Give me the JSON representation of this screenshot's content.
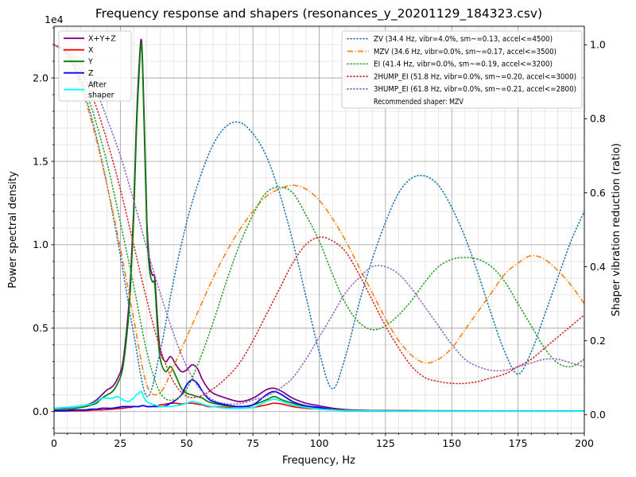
{
  "chart_data": {
    "type": "line",
    "title": "Frequency response and shapers (resonances_y_20201129_184323.csv)",
    "xlabel": "Frequency, Hz",
    "ylabel_left": "Power spectral density",
    "ylabel_right": "Shaper vibration reduction (ratio)",
    "y_left_offset_text": "1e4",
    "x_range": [
      0,
      200
    ],
    "y_left_range": [
      -0.13,
      2.31
    ],
    "y_right_range": [
      -0.05,
      1.05
    ],
    "x_ticks": {
      "values": [
        0,
        25,
        50,
        75,
        100,
        125,
        150,
        175,
        200
      ],
      "labels": [
        "0",
        "25",
        "50",
        "75",
        "100",
        "125",
        "150",
        "175",
        "200"
      ],
      "minor_step": 5
    },
    "y_left_ticks": {
      "values": [
        0,
        0.5,
        1.0,
        1.5,
        2.0
      ],
      "labels": [
        "0.0",
        "0.5",
        "1.0",
        "1.5",
        "2.0"
      ],
      "minor_step": 0.1
    },
    "y_right_ticks": {
      "values": [
        0,
        0.2,
        0.4,
        0.6,
        0.8,
        1.0
      ],
      "labels": [
        "0.0",
        "0.2",
        "0.4",
        "0.6",
        "0.8",
        "1.0"
      ]
    },
    "grid": {
      "major_color": "#9b9b9b",
      "minor_color": "#dcdcdc"
    },
    "psd_x": [
      0,
      4,
      8,
      12,
      14,
      16,
      18,
      20,
      22,
      24,
      26,
      28,
      29,
      30,
      31,
      32,
      33,
      34,
      35,
      36,
      37,
      38,
      39,
      40,
      42,
      44,
      46,
      48,
      50,
      52,
      54,
      56,
      58,
      60,
      65,
      70,
      75,
      80,
      83,
      86,
      90,
      95,
      100,
      105,
      110,
      120,
      140,
      160,
      180,
      200
    ],
    "psd_series": [
      {
        "name": "x-y-z",
        "legend_lines": [
          "X+Y+Z"
        ],
        "color": "#800080",
        "style": "solid",
        "y": [
          0.02,
          0.02,
          0.03,
          0.04,
          0.05,
          0.07,
          0.1,
          0.13,
          0.15,
          0.2,
          0.3,
          0.6,
          0.85,
          1.2,
          1.7,
          2.05,
          2.22,
          1.75,
          1.15,
          0.9,
          0.82,
          0.8,
          0.55,
          0.37,
          0.3,
          0.33,
          0.28,
          0.24,
          0.25,
          0.28,
          0.26,
          0.19,
          0.14,
          0.11,
          0.08,
          0.06,
          0.08,
          0.13,
          0.14,
          0.12,
          0.08,
          0.05,
          0.035,
          0.02,
          0.012,
          0.007,
          0.005,
          0.004,
          0.004,
          0.004
        ]
      },
      {
        "name": "x",
        "legend_lines": [
          "X"
        ],
        "color": "#ff0000",
        "style": "solid",
        "y": [
          0.004,
          0.004,
          0.005,
          0.006,
          0.008,
          0.01,
          0.01,
          0.012,
          0.015,
          0.018,
          0.02,
          0.025,
          0.025,
          0.03,
          0.03,
          0.03,
          0.035,
          0.035,
          0.03,
          0.03,
          0.03,
          0.035,
          0.035,
          0.04,
          0.045,
          0.05,
          0.05,
          0.045,
          0.05,
          0.05,
          0.045,
          0.04,
          0.03,
          0.03,
          0.025,
          0.02,
          0.025,
          0.04,
          0.05,
          0.045,
          0.03,
          0.02,
          0.015,
          0.01,
          0.008,
          0.006,
          0.005,
          0.004,
          0.004,
          0.004
        ]
      },
      {
        "name": "y",
        "legend_lines": [
          "Y"
        ],
        "color": "#008000",
        "style": "solid",
        "y": [
          0.01,
          0.01,
          0.02,
          0.03,
          0.04,
          0.05,
          0.08,
          0.1,
          0.12,
          0.17,
          0.27,
          0.55,
          0.8,
          1.15,
          1.65,
          2.0,
          2.2,
          1.7,
          1.1,
          0.85,
          0.78,
          0.76,
          0.5,
          0.32,
          0.24,
          0.27,
          0.21,
          0.14,
          0.11,
          0.1,
          0.09,
          0.08,
          0.06,
          0.05,
          0.035,
          0.03,
          0.04,
          0.07,
          0.09,
          0.07,
          0.05,
          0.03,
          0.02,
          0.012,
          0.008,
          0.005,
          0.004,
          0.003,
          0.003,
          0.003
        ]
      },
      {
        "name": "z",
        "legend_lines": [
          "Z"
        ],
        "color": "#0000ff",
        "style": "solid",
        "y": [
          0.005,
          0.005,
          0.01,
          0.01,
          0.015,
          0.015,
          0.02,
          0.02,
          0.02,
          0.025,
          0.03,
          0.03,
          0.03,
          0.03,
          0.03,
          0.03,
          0.035,
          0.035,
          0.03,
          0.03,
          0.03,
          0.03,
          0.03,
          0.03,
          0.035,
          0.05,
          0.07,
          0.1,
          0.16,
          0.19,
          0.17,
          0.12,
          0.08,
          0.06,
          0.04,
          0.03,
          0.04,
          0.1,
          0.12,
          0.1,
          0.06,
          0.035,
          0.025,
          0.012,
          0.006,
          0.004,
          0.003,
          0.003,
          0.003,
          0.003
        ]
      },
      {
        "name": "after-shaper",
        "legend_lines": [
          "After",
          "shaper"
        ],
        "color": "#00ffff",
        "style": "solid",
        "y": [
          0.02,
          0.025,
          0.03,
          0.04,
          0.045,
          0.06,
          0.08,
          0.08,
          0.08,
          0.09,
          0.07,
          0.06,
          0.07,
          0.08,
          0.1,
          0.11,
          0.12,
          0.08,
          0.06,
          0.05,
          0.045,
          0.04,
          0.035,
          0.03,
          0.03,
          0.03,
          0.035,
          0.04,
          0.05,
          0.06,
          0.055,
          0.045,
          0.035,
          0.03,
          0.02,
          0.02,
          0.025,
          0.06,
          0.075,
          0.06,
          0.04,
          0.025,
          0.015,
          0.01,
          0.006,
          0.004,
          0.003,
          0.003,
          0.003,
          0.003
        ]
      }
    ],
    "shaper_series": [
      {
        "name": "zv",
        "label": "ZV (34.4 Hz, vibr=4.0%, sm~=0.13, accel<=4500)",
        "color": "#1f77b4",
        "style": "dotted",
        "x_start": 0,
        "x_step": 5,
        "y": [
          1.0,
          0.975,
          0.9,
          0.78,
          0.62,
          0.43,
          0.22,
          0.05,
          0.17,
          0.36,
          0.52,
          0.64,
          0.73,
          0.78,
          0.79,
          0.76,
          0.7,
          0.6,
          0.47,
          0.32,
          0.17,
          0.07,
          0.16,
          0.3,
          0.42,
          0.52,
          0.6,
          0.64,
          0.645,
          0.62,
          0.56,
          0.48,
          0.38,
          0.27,
          0.17,
          0.11,
          0.17,
          0.27,
          0.37,
          0.47,
          0.55
        ]
      },
      {
        "name": "mzv",
        "label": "MZV (34.6 Hz, vibr=0.0%, sm~=0.17, accel<=3500)",
        "color": "#ff7f0e",
        "style": "dashdot",
        "x_start": 0,
        "x_step": 5,
        "y": [
          1.0,
          0.97,
          0.89,
          0.77,
          0.62,
          0.45,
          0.26,
          0.08,
          0.06,
          0.13,
          0.21,
          0.29,
          0.37,
          0.44,
          0.5,
          0.55,
          0.59,
          0.61,
          0.62,
          0.61,
          0.58,
          0.53,
          0.47,
          0.4,
          0.33,
          0.26,
          0.2,
          0.16,
          0.14,
          0.15,
          0.18,
          0.23,
          0.28,
          0.33,
          0.38,
          0.41,
          0.43,
          0.42,
          0.39,
          0.35,
          0.3
        ]
      },
      {
        "name": "ei",
        "label": "EI (41.4 Hz, vibr=0.0%, sm~=0.19, accel<=3200)",
        "color": "#2ca02c",
        "style": "dotted",
        "x_start": 0,
        "x_step": 5,
        "y": [
          1.0,
          0.975,
          0.91,
          0.81,
          0.68,
          0.52,
          0.35,
          0.17,
          0.06,
          0.04,
          0.07,
          0.15,
          0.25,
          0.36,
          0.46,
          0.54,
          0.6,
          0.615,
          0.6,
          0.54,
          0.47,
          0.38,
          0.3,
          0.25,
          0.23,
          0.24,
          0.27,
          0.31,
          0.36,
          0.4,
          0.42,
          0.425,
          0.42,
          0.4,
          0.36,
          0.3,
          0.24,
          0.18,
          0.14,
          0.13,
          0.15
        ]
      },
      {
        "name": "2hump-ei",
        "label": "2HUMP_EI (51.8 Hz, vibr=0.0%, sm~=0.20, accel<=3000)",
        "color": "#d62728",
        "style": "dotted",
        "x_start": 0,
        "x_step": 5,
        "y": [
          1.0,
          0.98,
          0.93,
          0.85,
          0.74,
          0.61,
          0.46,
          0.31,
          0.18,
          0.09,
          0.05,
          0.05,
          0.07,
          0.1,
          0.14,
          0.2,
          0.27,
          0.34,
          0.41,
          0.46,
          0.48,
          0.47,
          0.44,
          0.38,
          0.31,
          0.24,
          0.18,
          0.13,
          0.1,
          0.09,
          0.085,
          0.085,
          0.09,
          0.1,
          0.11,
          0.13,
          0.15,
          0.18,
          0.21,
          0.24,
          0.27
        ]
      },
      {
        "name": "3hump-ei",
        "label": "3HUMP_EI (61.8 Hz, vibr=0.0%, sm~=0.21, accel<=2800)",
        "color": "#9467bd",
        "style": "dotted",
        "x_start": 0,
        "x_step": 5,
        "y": [
          1.0,
          0.985,
          0.95,
          0.89,
          0.8,
          0.7,
          0.58,
          0.45,
          0.33,
          0.22,
          0.13,
          0.07,
          0.04,
          0.03,
          0.03,
          0.04,
          0.05,
          0.07,
          0.1,
          0.15,
          0.21,
          0.27,
          0.33,
          0.37,
          0.4,
          0.4,
          0.38,
          0.34,
          0.29,
          0.24,
          0.19,
          0.15,
          0.13,
          0.12,
          0.12,
          0.13,
          0.14,
          0.15,
          0.15,
          0.14,
          0.13
        ]
      }
    ],
    "legend_note": "Recommended shaper: MZV"
  }
}
